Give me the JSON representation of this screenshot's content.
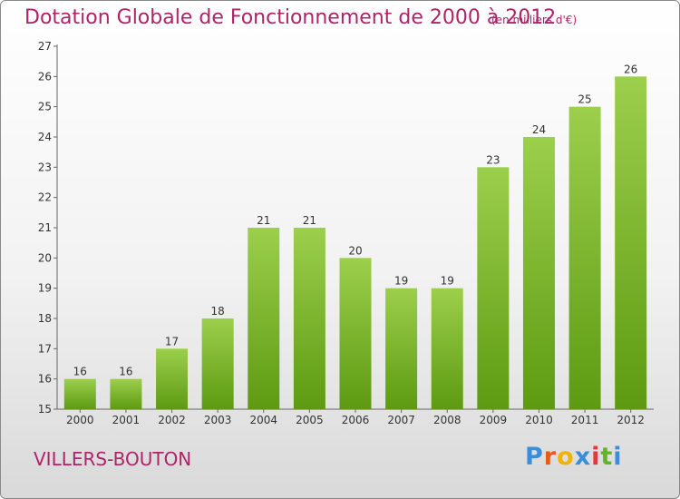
{
  "header": {
    "title": "Dotation Globale de Fonctionnement de 2000 à 2012",
    "subtitle": "(en milliers d'€)"
  },
  "footer": {
    "commune": "VILLERS-BOUTON",
    "logo": "Proxiti"
  },
  "colors": {
    "title": "#b0226a",
    "bar_light": "#9ccf4c",
    "bar_dark": "#5d9a12",
    "logo": [
      "#3a8ddc",
      "#e85a1a",
      "#f0b400",
      "#3a8ddc",
      "#e03a3a",
      "#62b32a",
      "#3a8ddc"
    ]
  },
  "chart_data": {
    "type": "bar",
    "categories": [
      "2000",
      "2001",
      "2002",
      "2003",
      "2004",
      "2005",
      "2006",
      "2007",
      "2008",
      "2009",
      "2010",
      "2011",
      "2012"
    ],
    "values": [
      16,
      16,
      17,
      18,
      21,
      21,
      20,
      19,
      19,
      23,
      24,
      25,
      26
    ],
    "title": "Dotation Globale de Fonctionnement de 2000 à 2012",
    "subtitle": "(en milliers d'€)",
    "ylim": [
      15,
      27
    ],
    "yticks": [
      15,
      16,
      17,
      18,
      19,
      20,
      21,
      22,
      23,
      24,
      25,
      26,
      27
    ],
    "grid": false,
    "data_labels": true
  }
}
